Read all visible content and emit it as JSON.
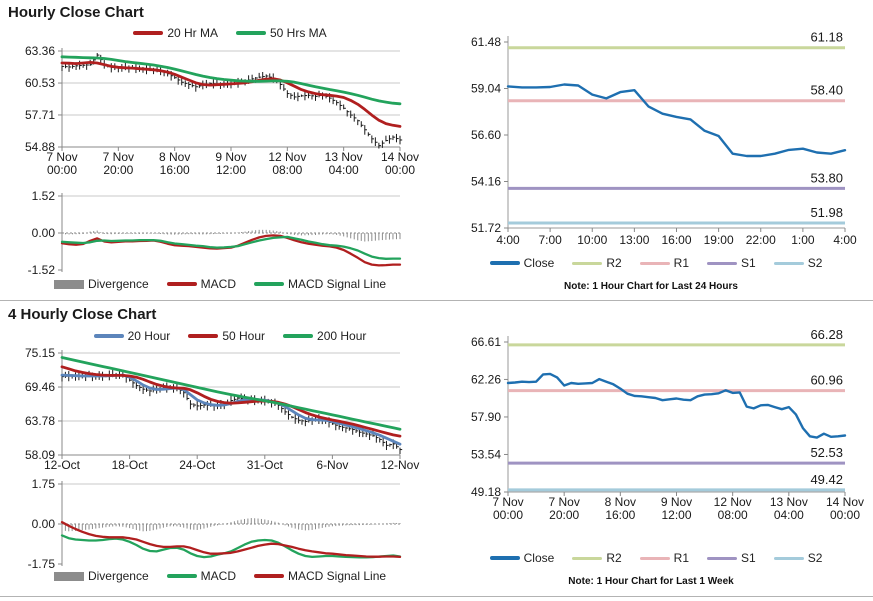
{
  "titles": {
    "hourly": "Hourly Close Chart",
    "four_hourly": "4 Hourly Close Chart"
  },
  "notes": {
    "hourly": "Note: 1 Hour Chart for Last 24 Hours",
    "four_hourly": "Note: 1 Hour Chart for Last 1 Week"
  },
  "chart_data": [
    {
      "id": "h-price",
      "type": "candlestick",
      "title": "Hourly Close Chart",
      "ylim": [
        54.88,
        63.36
      ],
      "yticks": [
        "63.36",
        "60.53",
        "57.71",
        "54.88"
      ],
      "xticklabels": [
        [
          "7 Nov",
          "00:00"
        ],
        [
          "7 Nov",
          "20:00"
        ],
        [
          "8 Nov",
          "16:00"
        ],
        [
          "9 Nov",
          "12:00"
        ],
        [
          "12 Nov",
          "08:00"
        ],
        [
          "13 Nov",
          "04:00"
        ],
        [
          "14 Nov",
          "00:00"
        ]
      ],
      "candle_color": "#1a1a1a",
      "close": [
        62.0,
        61.95,
        62.05,
        62.1,
        62.15,
        63.0,
        62.2,
        61.9,
        61.85,
        61.9,
        61.85,
        61.8,
        61.7,
        61.75,
        61.6,
        61.35,
        61.0,
        60.6,
        60.4,
        60.2,
        60.35,
        60.5,
        60.45,
        60.4,
        60.45,
        60.55,
        60.7,
        60.9,
        61.05,
        61.15,
        60.95,
        60.4,
        59.6,
        59.3,
        59.4,
        59.45,
        59.35,
        59.5,
        59.2,
        58.8,
        58.3,
        57.7,
        57.2,
        56.4,
        55.6,
        55.0,
        55.45,
        55.75,
        55.5
      ],
      "series": [
        {
          "name": "20 Hr MA",
          "color": "#B01F1F",
          "values": [
            62.3,
            62.28,
            62.25,
            62.3,
            62.35,
            62.3,
            62.15,
            62.0,
            61.92,
            61.88,
            61.85,
            61.8,
            61.75,
            61.7,
            61.62,
            61.5,
            61.3,
            61.05,
            60.8,
            60.55,
            60.4,
            60.35,
            60.38,
            60.42,
            60.45,
            60.5,
            60.55,
            60.65,
            60.78,
            60.88,
            60.9,
            60.8,
            60.55,
            60.25,
            59.95,
            59.75,
            59.6,
            59.5,
            59.45,
            59.38,
            59.25,
            59.0,
            58.65,
            58.2,
            57.7,
            57.25,
            56.95,
            56.8,
            56.7
          ]
        },
        {
          "name": "50 Hrs MA",
          "color": "#23A35C",
          "values": [
            62.85,
            62.82,
            62.8,
            62.78,
            62.76,
            62.74,
            62.7,
            62.62,
            62.52,
            62.42,
            62.34,
            62.27,
            62.2,
            62.12,
            62.02,
            61.9,
            61.76,
            61.6,
            61.44,
            61.28,
            61.14,
            61.02,
            60.92,
            60.84,
            60.78,
            60.73,
            60.7,
            60.68,
            60.68,
            60.7,
            60.72,
            60.72,
            60.68,
            60.6,
            60.48,
            60.34,
            60.2,
            60.08,
            59.96,
            59.85,
            59.73,
            59.6,
            59.45,
            59.28,
            59.1,
            58.95,
            58.85,
            58.75,
            58.7
          ]
        }
      ]
    },
    {
      "id": "h-macd",
      "type": "macd",
      "ylim": [
        -1.52,
        1.52
      ],
      "yticks": [
        "1.52",
        "0.00",
        "-1.52"
      ],
      "bars": {
        "name": "Divergence",
        "color": "#8C8C8C",
        "values": [
          -0.05,
          -0.06,
          -0.05,
          -0.04,
          0.06,
          0.1,
          -0.04,
          -0.05,
          -0.04,
          -0.03,
          -0.03,
          -0.04,
          -0.03,
          -0.02,
          -0.04,
          -0.06,
          -0.07,
          -0.06,
          -0.05,
          -0.05,
          -0.06,
          -0.05,
          -0.04,
          -0.03,
          -0.03,
          0.02,
          0.06,
          0.1,
          0.13,
          0.13,
          0.1,
          0.06,
          -0.04,
          -0.08,
          -0.1,
          -0.09,
          -0.08,
          -0.06,
          -0.05,
          -0.08,
          -0.14,
          -0.22,
          -0.3,
          -0.35,
          -0.33,
          -0.3,
          -0.28,
          -0.26,
          -0.25
        ]
      },
      "series": [
        {
          "name": "MACD",
          "color": "#B01F1F",
          "values": [
            -0.42,
            -0.46,
            -0.48,
            -0.45,
            -0.32,
            -0.22,
            -0.35,
            -0.38,
            -0.36,
            -0.34,
            -0.34,
            -0.33,
            -0.32,
            -0.31,
            -0.36,
            -0.44,
            -0.5,
            -0.52,
            -0.54,
            -0.57,
            -0.6,
            -0.63,
            -0.64,
            -0.62,
            -0.6,
            -0.52,
            -0.4,
            -0.28,
            -0.18,
            -0.12,
            -0.1,
            -0.12,
            -0.2,
            -0.3,
            -0.38,
            -0.44,
            -0.48,
            -0.52,
            -0.55,
            -0.6,
            -0.7,
            -0.85,
            -1.02,
            -1.2,
            -1.3,
            -1.33,
            -1.32,
            -1.3,
            -1.3
          ]
        },
        {
          "name": "MACD Signal Line",
          "color": "#23A35C",
          "values": [
            -0.36,
            -0.38,
            -0.4,
            -0.41,
            -0.38,
            -0.32,
            -0.31,
            -0.33,
            -0.32,
            -0.31,
            -0.31,
            -0.29,
            -0.29,
            -0.29,
            -0.32,
            -0.38,
            -0.43,
            -0.46,
            -0.49,
            -0.52,
            -0.54,
            -0.58,
            -0.6,
            -0.59,
            -0.57,
            -0.54,
            -0.46,
            -0.38,
            -0.31,
            -0.25,
            -0.2,
            -0.18,
            -0.16,
            -0.22,
            -0.28,
            -0.35,
            -0.4,
            -0.46,
            -0.5,
            -0.52,
            -0.56,
            -0.63,
            -0.72,
            -0.85,
            -0.97,
            -1.03,
            -1.06,
            -1.05,
            -1.05
          ]
        }
      ]
    },
    {
      "id": "h-levels",
      "type": "levels",
      "ylim": [
        51.72,
        61.48
      ],
      "yticks": [
        "61.48",
        "59.04",
        "56.60",
        "54.16",
        "51.72"
      ],
      "xticklabels": [
        "4:00",
        "7:00",
        "10:00",
        "13:00",
        "16:00",
        "19:00",
        "22:00",
        "1:00",
        "4:00"
      ],
      "close": {
        "name": "Close",
        "color": "#1E6FB0",
        "values": [
          59.15,
          59.1,
          59.1,
          59.12,
          59.25,
          59.2,
          58.72,
          58.52,
          58.85,
          58.95,
          58.1,
          57.72,
          57.55,
          57.42,
          56.82,
          56.55,
          55.62,
          55.5,
          55.5,
          55.62,
          55.82,
          55.88,
          55.68,
          55.62,
          55.8
        ]
      },
      "levels": [
        {
          "name": "R2",
          "label": "61.18",
          "value": 61.18,
          "color": "#C9D79B"
        },
        {
          "name": "R1",
          "label": "58.40",
          "value": 58.4,
          "color": "#E9B4B7"
        },
        {
          "name": "S1",
          "label": "53.80",
          "value": 53.8,
          "color": "#9F93C2"
        },
        {
          "name": "S2",
          "label": "51.98",
          "value": 51.98,
          "color": "#A4CBDB"
        }
      ],
      "note": "Note: 1 Hour Chart for Last 24 Hours"
    },
    {
      "id": "f-price",
      "type": "candlestick",
      "title": "4 Hourly Close Chart",
      "ylim": [
        58.09,
        75.15
      ],
      "yticks": [
        "75.15",
        "69.46",
        "63.78",
        "58.09"
      ],
      "xticklabels": [
        "12-Oct",
        "18-Oct",
        "24-Oct",
        "31-Oct",
        "6-Nov",
        "12-Nov"
      ],
      "candle_color": "#1a1a1a",
      "close": [
        71.2,
        71.3,
        71.25,
        71.35,
        71.3,
        71.25,
        71.3,
        71.45,
        71.55,
        71.5,
        70.6,
        69.7,
        69.1,
        68.8,
        69.1,
        69.35,
        69.4,
        69.3,
        68.5,
        66.6,
        66.3,
        66.45,
        66.35,
        66.3,
        66.55,
        67.2,
        67.6,
        67.5,
        67.3,
        67.25,
        67.15,
        66.9,
        66.4,
        65.3,
        64.4,
        63.9,
        63.7,
        64.0,
        64.05,
        63.8,
        63.3,
        62.85,
        62.6,
        62.35,
        61.9,
        61.6,
        61.3,
        60.7,
        59.7,
        59.95,
        59.0
      ],
      "series": [
        {
          "name": "20 Hour",
          "color": "#5C85BB",
          "values": [
            71.45,
            71.4,
            71.35,
            71.3,
            71.3,
            71.3,
            71.3,
            71.35,
            71.4,
            71.45,
            71.1,
            70.5,
            69.8,
            69.3,
            69.05,
            69.1,
            69.2,
            69.3,
            69.05,
            68.2,
            67.3,
            66.8,
            66.5,
            66.4,
            66.45,
            66.7,
            67.05,
            67.3,
            67.4,
            67.35,
            67.25,
            67.05,
            66.75,
            66.2,
            65.5,
            64.8,
            64.25,
            64.0,
            63.95,
            63.9,
            63.7,
            63.4,
            63.1,
            62.8,
            62.5,
            62.15,
            61.8,
            61.4,
            60.9,
            60.4,
            59.9
          ]
        },
        {
          "name": "50 Hour",
          "color": "#B01F1F",
          "values": [
            72.85,
            72.5,
            72.15,
            71.9,
            71.7,
            71.55,
            71.45,
            71.4,
            71.4,
            71.4,
            71.3,
            71.1,
            70.75,
            70.3,
            69.9,
            69.6,
            69.4,
            69.3,
            69.25,
            69.0,
            68.5,
            67.9,
            67.4,
            67.05,
            66.85,
            66.75,
            66.8,
            66.9,
            67.0,
            67.1,
            67.1,
            67.05,
            66.9,
            66.6,
            66.2,
            65.7,
            65.2,
            64.8,
            64.45,
            64.2,
            63.95,
            63.75,
            63.5,
            63.25,
            62.95,
            62.65,
            62.35,
            62.05,
            61.75,
            61.45,
            61.25
          ]
        },
        {
          "name": "200 Hour",
          "color": "#23A35C",
          "values": [
            74.4,
            74.15,
            73.9,
            73.65,
            73.4,
            73.15,
            72.9,
            72.65,
            72.4,
            72.15,
            71.9,
            71.65,
            71.4,
            71.15,
            70.9,
            70.65,
            70.4,
            70.15,
            69.9,
            69.65,
            69.4,
            69.15,
            68.9,
            68.65,
            68.42,
            68.2,
            67.98,
            67.76,
            67.55,
            67.35,
            67.15,
            66.95,
            66.72,
            66.48,
            66.24,
            66.0,
            65.76,
            65.52,
            65.28,
            65.04,
            64.8,
            64.56,
            64.32,
            64.08,
            63.84,
            63.6,
            63.36,
            63.12,
            62.88,
            62.64,
            62.4
          ]
        }
      ]
    },
    {
      "id": "f-macd",
      "type": "macd",
      "ylim": [
        -1.75,
        1.75
      ],
      "yticks": [
        "1.75",
        "0.00",
        "-1.75"
      ],
      "bars": {
        "name": "Divergence",
        "color": "#8C8C8C",
        "values": [
          -0.28,
          -0.32,
          -0.3,
          -0.27,
          -0.24,
          -0.2,
          -0.16,
          -0.12,
          -0.1,
          -0.12,
          -0.18,
          -0.26,
          -0.32,
          -0.3,
          -0.24,
          -0.16,
          -0.1,
          -0.1,
          -0.16,
          -0.24,
          -0.26,
          -0.2,
          -0.12,
          -0.06,
          0.0,
          0.08,
          0.16,
          0.22,
          0.26,
          0.24,
          0.2,
          0.14,
          0.06,
          -0.06,
          -0.16,
          -0.24,
          -0.28,
          -0.26,
          -0.2,
          -0.14,
          -0.1,
          -0.08,
          -0.06,
          -0.05,
          -0.05,
          -0.04,
          -0.02,
          0.0,
          0.03,
          0.05,
          0.04
        ]
      },
      "series": [
        {
          "name": "MACD",
          "color": "#23A35C",
          "values": [
            -0.5,
            -0.62,
            -0.68,
            -0.7,
            -0.72,
            -0.72,
            -0.7,
            -0.66,
            -0.64,
            -0.68,
            -0.78,
            -0.92,
            -1.08,
            -1.18,
            -1.2,
            -1.12,
            -1.05,
            -1.04,
            -1.12,
            -1.28,
            -1.4,
            -1.45,
            -1.42,
            -1.34,
            -1.28,
            -1.2,
            -1.05,
            -0.9,
            -0.78,
            -0.72,
            -0.7,
            -0.72,
            -0.82,
            -0.98,
            -1.15,
            -1.3,
            -1.4,
            -1.44,
            -1.42,
            -1.4,
            -1.4,
            -1.42,
            -1.44,
            -1.45,
            -1.46,
            -1.46,
            -1.45,
            -1.42,
            -1.4,
            -1.38,
            -1.42
          ]
        },
        {
          "name": "MACD Signal Line",
          "color": "#B01F1F",
          "values": [
            0.08,
            -0.08,
            -0.22,
            -0.34,
            -0.44,
            -0.52,
            -0.56,
            -0.58,
            -0.58,
            -0.58,
            -0.62,
            -0.68,
            -0.78,
            -0.88,
            -0.96,
            -1.0,
            -1.0,
            -0.98,
            -0.98,
            -1.04,
            -1.14,
            -1.24,
            -1.3,
            -1.3,
            -1.28,
            -1.26,
            -1.2,
            -1.12,
            -1.04,
            -0.96,
            -0.9,
            -0.86,
            -0.88,
            -0.94,
            -1.0,
            -1.08,
            -1.15,
            -1.2,
            -1.24,
            -1.28,
            -1.3,
            -1.33,
            -1.36,
            -1.38,
            -1.4,
            -1.42,
            -1.43,
            -1.43,
            -1.42,
            -1.42,
            -1.44
          ]
        }
      ]
    },
    {
      "id": "f-levels",
      "type": "levels",
      "ylim": [
        49.18,
        66.61
      ],
      "yticks": [
        "66.61",
        "62.26",
        "57.90",
        "53.54",
        "49.18"
      ],
      "xticklabels": [
        [
          "7 Nov",
          "00:00"
        ],
        [
          "7 Nov",
          "20:00"
        ],
        [
          "8 Nov",
          "16:00"
        ],
        [
          "9 Nov",
          "12:00"
        ],
        [
          "12 Nov",
          "08:00"
        ],
        [
          "13 Nov",
          "04:00"
        ],
        [
          "14 Nov",
          "00:00"
        ]
      ],
      "close": {
        "name": "Close",
        "color": "#1E6FB0",
        "values": [
          61.85,
          61.9,
          62.0,
          61.95,
          62.0,
          62.85,
          62.9,
          62.5,
          61.55,
          61.85,
          61.75,
          61.8,
          61.85,
          62.3,
          62.0,
          61.7,
          61.2,
          60.6,
          60.35,
          60.3,
          60.2,
          60.1,
          59.85,
          59.95,
          60.05,
          59.9,
          59.85,
          60.3,
          60.5,
          60.55,
          60.65,
          61.0,
          60.7,
          60.75,
          59.1,
          58.9,
          59.25,
          59.3,
          59.05,
          58.8,
          59.05,
          58.2,
          56.6,
          55.65,
          55.5,
          55.95,
          55.6,
          55.65,
          55.75
        ]
      },
      "levels": [
        {
          "name": "R2",
          "label": "66.28",
          "value": 66.28,
          "color": "#C9D79B"
        },
        {
          "name": "R1",
          "label": "60.96",
          "value": 60.96,
          "color": "#E9B4B7"
        },
        {
          "name": "S1",
          "label": "52.53",
          "value": 52.53,
          "color": "#9F93C2"
        },
        {
          "name": "S2",
          "label": "49.42",
          "value": 49.42,
          "color": "#A4CBDB"
        }
      ],
      "note": "Note: 1 Hour Chart for Last 1 Week"
    }
  ]
}
